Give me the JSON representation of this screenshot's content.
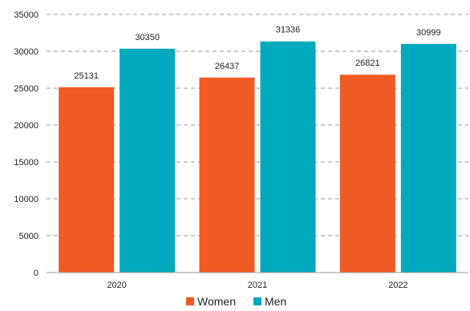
{
  "chart_data": {
    "type": "bar",
    "categories": [
      "2020",
      "2021",
      "2022"
    ],
    "series": [
      {
        "name": "Women",
        "color": "#f05a24",
        "values": [
          25131,
          26437,
          26821
        ]
      },
      {
        "name": "Men",
        "color": "#00a9bd",
        "values": [
          30350,
          31336,
          30999
        ]
      }
    ],
    "title": "",
    "xlabel": "",
    "ylabel": "",
    "ylim": [
      0,
      35000
    ],
    "yticks": [
      0,
      5000,
      10000,
      15000,
      20000,
      25000,
      30000,
      35000
    ],
    "grid": true,
    "legend_position": "bottom-center",
    "data_labels": true
  }
}
